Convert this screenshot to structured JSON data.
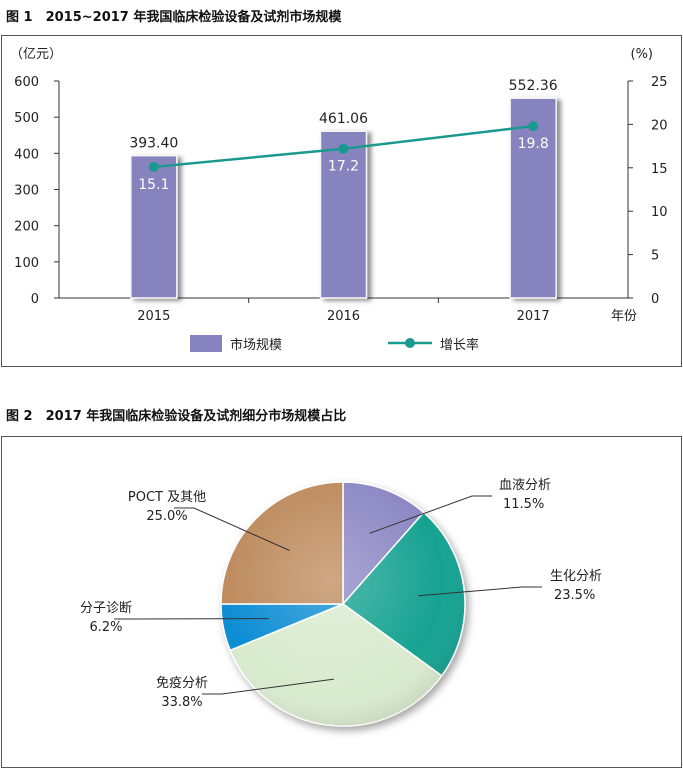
{
  "figure1": {
    "title": "图 1　2015~2017 年我国临床检验设备及试剂市场规模",
    "chart_data": {
      "type": "bar",
      "categories": [
        "2015",
        "2016",
        "2017"
      ],
      "series": [
        {
          "name": "市场规模",
          "type": "bar",
          "axis": "left",
          "values": [
            393.4,
            461.06,
            552.36
          ],
          "value_labels": [
            "393.40",
            "461.06",
            "552.36"
          ],
          "color": "#8683bf"
        },
        {
          "name": "增长率",
          "type": "line",
          "axis": "right",
          "values": [
            15.1,
            17.2,
            19.8
          ],
          "value_labels": [
            "15.1",
            "17.2",
            "19.8"
          ],
          "color": "#1a9a8e"
        }
      ],
      "xlabel": "年份",
      "ylabel": "（亿元）",
      "y2label": "(%)",
      "ylim": [
        0,
        600
      ],
      "yticks": [
        "0",
        "100",
        "200",
        "300",
        "400",
        "500",
        "600"
      ],
      "y2lim": [
        0,
        25
      ],
      "y2ticks": [
        "0",
        "5",
        "10",
        "15",
        "20",
        "25"
      ],
      "legend_position": "bottom",
      "grid": false
    }
  },
  "figure2": {
    "title": "图 2　2017 年我国临床检验设备及试剂细分市场规模占比",
    "chart_data": {
      "type": "pie",
      "slices": [
        {
          "label": "血液分析",
          "value": 11.5,
          "value_label": "11.5%",
          "color": "#8c88c4"
        },
        {
          "label": "生化分析",
          "value": 23.5,
          "value_label": "23.5%",
          "color": "#17a292"
        },
        {
          "label": "免疫分析",
          "value": 33.8,
          "value_label": "33.8%",
          "color": "#d9ebcf"
        },
        {
          "label": "分子诊断",
          "value": 6.2,
          "value_label": "6.2%",
          "color": "#0d8dd4"
        },
        {
          "label": "POCT 及其他",
          "value": 25.0,
          "value_label": "25.0%",
          "color": "#bd8a5c"
        }
      ],
      "legend_position": "none"
    }
  }
}
